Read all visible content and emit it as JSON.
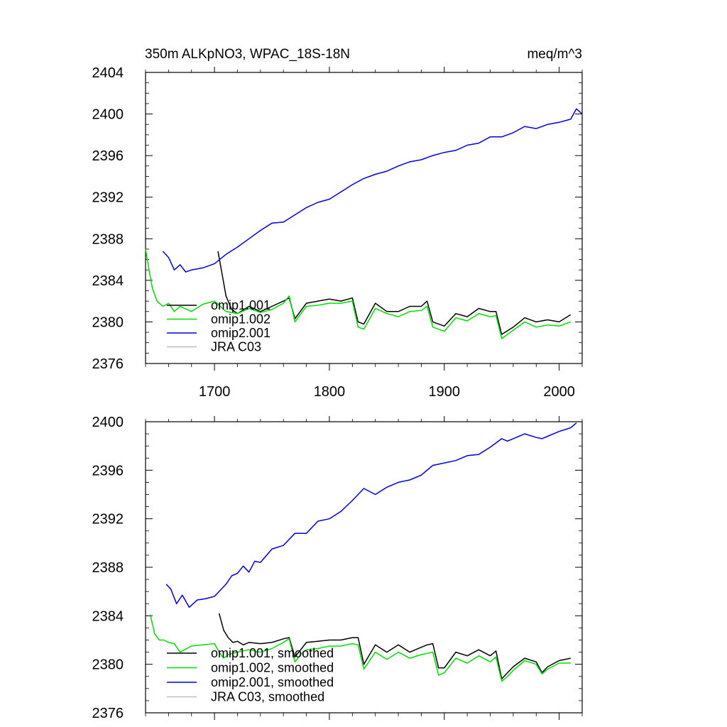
{
  "chart_data": [
    {
      "type": "line",
      "title": "350m ALKpNO3, WPAC_18S-18N",
      "units": "meq/m^3",
      "xlim": [
        1640,
        2020
      ],
      "ylim": [
        2376,
        2404
      ],
      "x_ticks": [
        1700,
        1800,
        1900,
        2000
      ],
      "y_ticks": [
        2376,
        2380,
        2384,
        2388,
        2392,
        2396,
        2400,
        2404
      ],
      "x_tick_labels": [
        "1700",
        "1800",
        "1900",
        "2000"
      ],
      "y_tick_labels": [
        "2376",
        "2380",
        "2384",
        "2388",
        "2392",
        "2396",
        "2400",
        "2404"
      ],
      "legend_position": "bottom-left",
      "series": [
        {
          "name": "omip1.001",
          "color": "#000000",
          "x": [
            1703,
            1706,
            1710,
            1715,
            1720,
            1730,
            1740,
            1750,
            1760,
            1765,
            1770,
            1780,
            1790,
            1800,
            1810,
            1820,
            1825,
            1830,
            1840,
            1850,
            1860,
            1870,
            1880,
            1885,
            1890,
            1900,
            1910,
            1920,
            1930,
            1940,
            1945,
            1950,
            1960,
            1970,
            1980,
            1990,
            2000,
            2010
          ],
          "y": [
            2386.8,
            2385.0,
            2382.5,
            2381.2,
            2380.8,
            2381.5,
            2381.0,
            2381.5,
            2382.0,
            2382.3,
            2380.3,
            2381.8,
            2382.0,
            2382.2,
            2382.0,
            2382.3,
            2380.0,
            2379.8,
            2381.8,
            2381.0,
            2381.0,
            2381.5,
            2381.5,
            2382.0,
            2380.0,
            2379.6,
            2380.8,
            2380.5,
            2381.3,
            2381.0,
            2381.0,
            2378.8,
            2379.5,
            2380.4,
            2380.0,
            2380.2,
            2380.0,
            2380.7
          ]
        },
        {
          "name": "omip1.002",
          "color": "#00e000",
          "x": [
            1640,
            1643,
            1646,
            1650,
            1655,
            1660,
            1665,
            1670,
            1680,
            1690,
            1700,
            1705,
            1710,
            1720,
            1730,
            1740,
            1750,
            1760,
            1765,
            1770,
            1780,
            1790,
            1800,
            1810,
            1820,
            1825,
            1830,
            1840,
            1850,
            1860,
            1870,
            1880,
            1885,
            1890,
            1900,
            1910,
            1920,
            1930,
            1940,
            1945,
            1950,
            1960,
            1970,
            1980,
            1990,
            2000,
            2010
          ],
          "y": [
            2387.0,
            2385.0,
            2383.2,
            2382.0,
            2381.5,
            2381.8,
            2381.0,
            2381.5,
            2381.0,
            2381.7,
            2382.0,
            2381.5,
            2381.0,
            2380.8,
            2381.3,
            2380.9,
            2381.2,
            2381.8,
            2382.5,
            2380.0,
            2381.5,
            2381.6,
            2381.8,
            2381.8,
            2382.0,
            2379.5,
            2379.3,
            2381.3,
            2380.8,
            2380.5,
            2381.0,
            2381.1,
            2381.5,
            2379.5,
            2379.1,
            2380.4,
            2380.1,
            2380.8,
            2380.5,
            2380.6,
            2378.4,
            2379.2,
            2380.0,
            2379.5,
            2379.7,
            2379.6,
            2380.0
          ]
        },
        {
          "name": "omip2.001",
          "color": "#0000e0",
          "x": [
            1655,
            1660,
            1665,
            1670,
            1675,
            1680,
            1690,
            1700,
            1710,
            1720,
            1730,
            1740,
            1750,
            1760,
            1770,
            1780,
            1790,
            1800,
            1810,
            1820,
            1830,
            1840,
            1850,
            1860,
            1870,
            1880,
            1890,
            1900,
            1910,
            1920,
            1930,
            1940,
            1950,
            1960,
            1970,
            1980,
            1990,
            2000,
            2010,
            2015,
            2020
          ],
          "y": [
            2386.8,
            2386.2,
            2385.0,
            2385.5,
            2384.8,
            2385.0,
            2385.2,
            2385.6,
            2386.5,
            2387.2,
            2388.0,
            2388.8,
            2389.5,
            2389.6,
            2390.3,
            2391.0,
            2391.5,
            2391.8,
            2392.5,
            2393.2,
            2393.8,
            2394.2,
            2394.5,
            2395.0,
            2395.4,
            2395.6,
            2396.0,
            2396.3,
            2396.5,
            2397.0,
            2397.2,
            2397.8,
            2397.8,
            2398.2,
            2398.8,
            2398.6,
            2399.0,
            2399.2,
            2399.5,
            2400.5,
            2400.0
          ]
        },
        {
          "name": "JRA C03",
          "color": "#bbbbbb",
          "x": [],
          "y": []
        }
      ]
    },
    {
      "type": "line",
      "title": "",
      "units": "",
      "xlim": [
        1640,
        2020
      ],
      "ylim": [
        2376,
        2400
      ],
      "x_ticks": [
        1700,
        1800,
        1900,
        2000
      ],
      "y_ticks": [
        2376,
        2380,
        2384,
        2388,
        2392,
        2396,
        2400
      ],
      "x_tick_labels": [],
      "y_tick_labels": [
        "2376",
        "2380",
        "2384",
        "2388",
        "2392",
        "2396",
        "2400"
      ],
      "legend_position": "bottom-left",
      "series": [
        {
          "name": "omip1.001, smoothed",
          "color": "#000000",
          "x": [
            1704,
            1708,
            1712,
            1716,
            1720,
            1725,
            1730,
            1740,
            1750,
            1760,
            1765,
            1770,
            1775,
            1780,
            1790,
            1800,
            1810,
            1820,
            1825,
            1830,
            1840,
            1850,
            1860,
            1870,
            1880,
            1885,
            1890,
            1895,
            1900,
            1910,
            1920,
            1930,
            1940,
            1945,
            1950,
            1955,
            1960,
            1970,
            1980,
            1985,
            1990,
            2000,
            2010
          ],
          "y": [
            2384.2,
            2382.8,
            2382.2,
            2381.8,
            2381.9,
            2381.6,
            2381.8,
            2381.7,
            2381.8,
            2382.1,
            2382.2,
            2380.6,
            2381.2,
            2381.8,
            2381.9,
            2382.0,
            2382.0,
            2382.2,
            2382.2,
            2380.0,
            2381.6,
            2381.0,
            2381.6,
            2381.0,
            2381.4,
            2381.6,
            2381.7,
            2379.7,
            2379.7,
            2381.0,
            2380.7,
            2381.2,
            2380.7,
            2381.1,
            2378.8,
            2379.3,
            2379.8,
            2380.5,
            2380.2,
            2379.3,
            2379.8,
            2380.3,
            2380.5
          ]
        },
        {
          "name": "omip1.002, smoothed",
          "color": "#00e000",
          "x": [
            1644,
            1648,
            1652,
            1656,
            1660,
            1665,
            1670,
            1680,
            1690,
            1700,
            1704,
            1708,
            1712,
            1720,
            1730,
            1740,
            1750,
            1760,
            1765,
            1770,
            1775,
            1780,
            1790,
            1800,
            1810,
            1820,
            1825,
            1830,
            1840,
            1850,
            1860,
            1870,
            1880,
            1885,
            1890,
            1895,
            1900,
            1910,
            1920,
            1930,
            1940,
            1945,
            1950,
            1955,
            1960,
            1970,
            1980,
            1985,
            1990,
            2000,
            2010
          ],
          "y": [
            2384.1,
            2382.5,
            2382.0,
            2382.0,
            2381.8,
            2381.7,
            2381.0,
            2381.5,
            2381.6,
            2381.7,
            2381.0,
            2380.5,
            2380.8,
            2381.0,
            2381.2,
            2381.0,
            2381.3,
            2381.8,
            2382.1,
            2380.2,
            2380.8,
            2381.2,
            2381.3,
            2381.5,
            2381.5,
            2381.7,
            2381.6,
            2379.6,
            2381.0,
            2380.4,
            2381.0,
            2380.5,
            2380.8,
            2380.9,
            2381.0,
            2379.1,
            2379.3,
            2380.5,
            2380.1,
            2380.7,
            2380.2,
            2380.6,
            2378.6,
            2379.0,
            2379.5,
            2380.3,
            2380.0,
            2379.2,
            2379.6,
            2380.1,
            2380.1
          ]
        },
        {
          "name": "omip2.001, smoothed",
          "color": "#0000e0",
          "x": [
            1658,
            1662,
            1667,
            1672,
            1678,
            1685,
            1692,
            1700,
            1710,
            1715,
            1720,
            1725,
            1730,
            1735,
            1740,
            1750,
            1760,
            1770,
            1780,
            1790,
            1800,
            1810,
            1820,
            1830,
            1840,
            1850,
            1860,
            1870,
            1880,
            1890,
            1900,
            1910,
            1920,
            1930,
            1940,
            1950,
            1955,
            1960,
            1970,
            1980,
            1985,
            1990,
            2000,
            2010,
            2015
          ],
          "y": [
            2386.6,
            2386.2,
            2385.0,
            2385.7,
            2384.7,
            2385.3,
            2385.4,
            2385.6,
            2386.6,
            2387.3,
            2387.5,
            2388.1,
            2387.6,
            2388.5,
            2388.4,
            2389.5,
            2389.8,
            2390.8,
            2390.8,
            2391.8,
            2392.0,
            2392.6,
            2393.5,
            2394.5,
            2394.0,
            2394.6,
            2395.0,
            2395.2,
            2395.6,
            2396.4,
            2396.6,
            2396.8,
            2397.2,
            2397.3,
            2397.9,
            2398.6,
            2398.4,
            2398.6,
            2399.0,
            2398.7,
            2398.6,
            2398.8,
            2399.2,
            2399.5,
            2399.9
          ]
        },
        {
          "name": "JRA C03, smoothed",
          "color": "#bbbbbb",
          "x": [],
          "y": []
        }
      ]
    }
  ]
}
